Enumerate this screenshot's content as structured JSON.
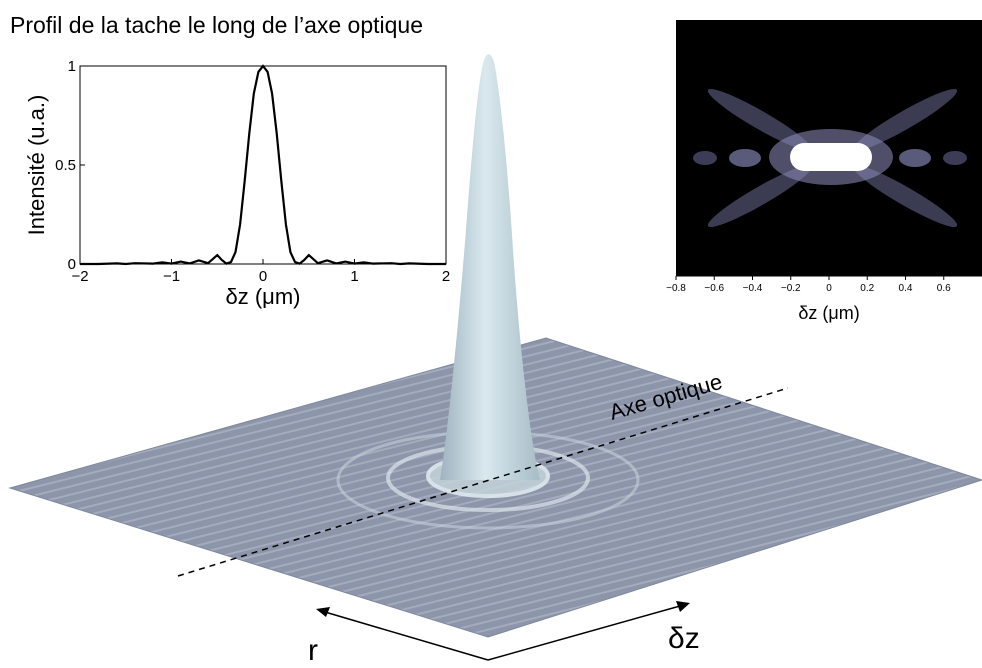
{
  "title": "Profil de la tache le long de l’axe optique",
  "surface_labels": {
    "axis_label": "Axe optique",
    "r_label": "r",
    "dz_label": "δz"
  },
  "colors": {
    "surface": "#8f98ac",
    "peak": "#d6e6ec",
    "heatmap_bg": "#000000",
    "heatmap_core": "#ffffff"
  },
  "chart_data": [
    {
      "type": "line",
      "xlabel": "δz (μm)",
      "ylabel": "Intensité (u.a.)",
      "xlim": [
        -2,
        2
      ],
      "ylim": [
        0,
        1
      ],
      "xticks": [
        "−2",
        "−1",
        "0",
        "1",
        "2"
      ],
      "yticks": [
        "0",
        "0.5",
        "1"
      ],
      "series": [
        {
          "x": [
            -2.0,
            -1.8,
            -1.6,
            -1.5,
            -1.4,
            -1.2,
            -1.1,
            -1.0,
            -0.9,
            -0.8,
            -0.7,
            -0.6,
            -0.5,
            -0.45,
            -0.4,
            -0.35,
            -0.3,
            -0.25,
            -0.2,
            -0.15,
            -0.1,
            -0.05,
            0.0,
            0.05,
            0.1,
            0.15,
            0.2,
            0.25,
            0.3,
            0.35,
            0.4,
            0.45,
            0.5,
            0.6,
            0.7,
            0.8,
            0.9,
            1.0,
            1.1,
            1.2,
            1.4,
            1.5,
            1.6,
            1.8,
            2.0
          ],
          "y": [
            0.0,
            0.0,
            0.003,
            0.0,
            0.004,
            0.002,
            0.008,
            0.002,
            0.012,
            0.003,
            0.018,
            0.004,
            0.045,
            0.02,
            0.002,
            0.01,
            0.06,
            0.2,
            0.42,
            0.66,
            0.86,
            0.97,
            1.0,
            0.97,
            0.86,
            0.66,
            0.42,
            0.2,
            0.06,
            0.01,
            0.002,
            0.02,
            0.045,
            0.004,
            0.018,
            0.003,
            0.012,
            0.002,
            0.008,
            0.002,
            0.004,
            0.0,
            0.003,
            0.0,
            0.0
          ]
        }
      ]
    },
    {
      "type": "heatmap",
      "xlabel": "δz (μm)",
      "xticks": [
        "−0.8",
        "−0.6",
        "−0.4",
        "−0.2",
        "0",
        "0.2",
        "0.4",
        "0.6"
      ],
      "xlim": [
        -0.8,
        0.8
      ]
    }
  ]
}
